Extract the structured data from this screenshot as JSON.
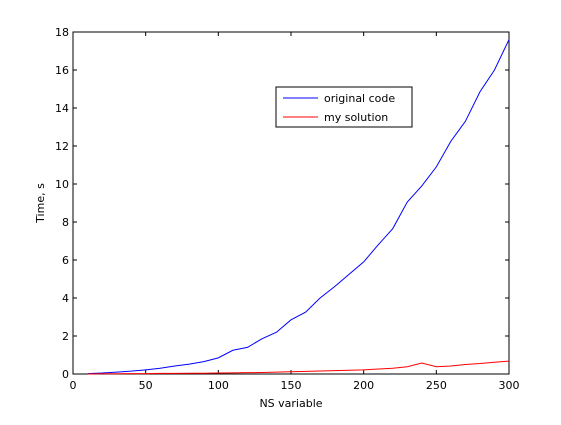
{
  "chart_data": {
    "type": "line",
    "xlabel": "NS variable",
    "ylabel": "Time, s",
    "xlim": [
      0,
      300
    ],
    "ylim": [
      0,
      18
    ],
    "xticks": [
      0,
      50,
      100,
      150,
      200,
      250,
      300
    ],
    "yticks": [
      0,
      2,
      4,
      6,
      8,
      10,
      12,
      14,
      16,
      18
    ],
    "grid": false,
    "legend_position": "upper-middle-right",
    "x": [
      10,
      20,
      30,
      40,
      50,
      60,
      70,
      80,
      90,
      100,
      110,
      120,
      130,
      140,
      150,
      160,
      170,
      180,
      190,
      200,
      210,
      220,
      230,
      240,
      250,
      260,
      270,
      280,
      290,
      300
    ],
    "series": [
      {
        "name": "original code",
        "color": "#0000ff",
        "values": [
          0.02,
          0.05,
          0.1,
          0.15,
          0.22,
          0.3,
          0.42,
          0.52,
          0.65,
          0.85,
          1.25,
          1.4,
          1.85,
          2.2,
          2.85,
          3.25,
          4.0,
          4.6,
          5.25,
          5.9,
          6.8,
          7.65,
          9.05,
          9.9,
          10.9,
          12.25,
          13.3,
          14.85,
          16.0,
          17.6
        ]
      },
      {
        "name": "my solution",
        "color": "#ff0000",
        "values": [
          0.0,
          0.01,
          0.01,
          0.02,
          0.02,
          0.03,
          0.03,
          0.04,
          0.04,
          0.05,
          0.06,
          0.07,
          0.08,
          0.1,
          0.12,
          0.14,
          0.16,
          0.18,
          0.2,
          0.22,
          0.26,
          0.3,
          0.38,
          0.58,
          0.38,
          0.42,
          0.5,
          0.55,
          0.62,
          0.68
        ]
      }
    ]
  }
}
